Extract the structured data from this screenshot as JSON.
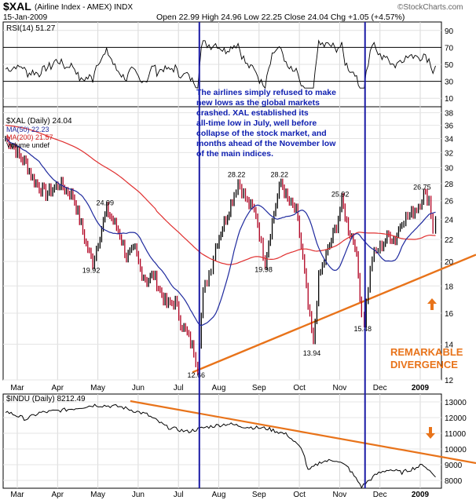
{
  "header": {
    "symbol": "$XAL",
    "name": "(Airline Index - AMEX) INDX",
    "date": "15-Jan-2009",
    "quote": "Open 22.99  High 24.96  Low 22.25  Close 24.04  Chg +1.05 (+4.57%)",
    "watermark": "©StockCharts.com"
  },
  "rsi": {
    "label": "RSI(14) 51.27",
    "ticks": [
      "90",
      "70",
      "50",
      "30",
      "10"
    ]
  },
  "price": {
    "legend": [
      "$XAL (Daily) 24.04",
      "MA(50) 22.23",
      "MA(200) 21.57",
      "Volume undef"
    ],
    "ticks": [
      "38",
      "36",
      "34",
      "32",
      "30",
      "28",
      "26",
      "24",
      "22",
      "20",
      "18",
      "16",
      "14",
      "12"
    ]
  },
  "dates": [
    "Mar",
    "Apr",
    "May",
    "Jun",
    "Jul",
    "Aug",
    "Sep",
    "Oct",
    "Nov",
    "Dec",
    "2009"
  ],
  "annotation": "The airlines simply refused to make new lows as the global markets crashed.  XAL established its all-time low in July, well before collapse of the stock market, and months ahead of the November low of the main indices.",
  "remarkable": [
    "REMARKABLE",
    "DIVERGENCE"
  ],
  "indu": {
    "legend": "$INDU (Daily) 8212.49",
    "ticks": [
      "13000",
      "12000",
      "11000",
      "10000",
      "9000",
      "8000"
    ]
  },
  "colors": {
    "price": "#b00020",
    "ma50": "#1f2a9e",
    "ma200": "#e03030",
    "trend": "#e8731a",
    "vline": "#1a1aa6",
    "annot": "#1020b0"
  },
  "chart_data": {
    "type": "line",
    "x_label_months": [
      "Mar",
      "Apr",
      "May",
      "Jun",
      "Jul",
      "Aug",
      "Sep",
      "Oct",
      "Nov",
      "Dec",
      "2009"
    ],
    "xal_close": [
      [
        "Feb-25",
        34.0
      ],
      [
        "Mar-01",
        32.8
      ],
      [
        "Mar-05",
        31.4
      ],
      [
        "Mar-10",
        30.6
      ],
      [
        "Mar-15",
        28.6
      ],
      [
        "Mar-20",
        27.6
      ],
      [
        "Mar-25",
        26.8
      ],
      [
        "Apr-01",
        27.5
      ],
      [
        "Apr-05",
        28.0
      ],
      [
        "Apr-10",
        27.2
      ],
      [
        "Apr-15",
        26.6
      ],
      [
        "Apr-20",
        24.0
      ],
      [
        "Apr-25",
        21.5
      ],
      [
        "Apr-30",
        19.92
      ],
      [
        "May-05",
        22.5
      ],
      [
        "May-10",
        24.99
      ],
      [
        "May-15",
        23.8
      ],
      [
        "May-20",
        22.5
      ],
      [
        "May-25",
        20.4
      ],
      [
        "Jun-01",
        21.0
      ],
      [
        "Jun-05",
        19.3
      ],
      [
        "Jun-10",
        18.4
      ],
      [
        "Jun-15",
        18.9
      ],
      [
        "Jun-20",
        17.6
      ],
      [
        "Jun-25",
        16.6
      ],
      [
        "Jul-01",
        16.8
      ],
      [
        "Jul-05",
        15.4
      ],
      [
        "Jul-10",
        14.6
      ],
      [
        "Jul-15",
        13.6
      ],
      [
        "Jul-18",
        12.66
      ],
      [
        "Jul-22",
        17.4
      ],
      [
        "Jul-28",
        19.6
      ],
      [
        "Aug-01",
        21.4
      ],
      [
        "Aug-05",
        22.8
      ],
      [
        "Aug-10",
        24.6
      ],
      [
        "Aug-15",
        26.8
      ],
      [
        "Aug-18",
        28.22
      ],
      [
        "Aug-25",
        25.8
      ],
      [
        "Sep-01",
        24.6
      ],
      [
        "Sep-05",
        21.5
      ],
      [
        "Sep-08",
        19.98
      ],
      [
        "Sep-12",
        22.8
      ],
      [
        "Sep-16",
        25.6
      ],
      [
        "Sep-20",
        28.22
      ],
      [
        "Sep-25",
        26.0
      ],
      [
        "Oct-01",
        24.8
      ],
      [
        "Oct-06",
        20.2
      ],
      [
        "Oct-10",
        16.4
      ],
      [
        "Oct-14",
        13.94
      ],
      [
        "Oct-18",
        18.6
      ],
      [
        "Oct-25",
        21.0
      ],
      [
        "Nov-01",
        23.4
      ],
      [
        "Nov-05",
        25.92
      ],
      [
        "Nov-10",
        23.0
      ],
      [
        "Nov-15",
        21.6
      ],
      [
        "Nov-20",
        16.0
      ],
      [
        "Nov-22",
        15.48
      ],
      [
        "Nov-28",
        20.4
      ],
      [
        "Dec-05",
        21.5
      ],
      [
        "Dec-10",
        22.4
      ],
      [
        "Dec-15",
        22.0
      ],
      [
        "Dec-20",
        24.0
      ],
      [
        "Dec-26",
        24.4
      ],
      [
        "Jan-02",
        25.5
      ],
      [
        "Jan-06",
        26.75
      ],
      [
        "Jan-10",
        26.2
      ],
      [
        "Jan-13",
        23.0
      ],
      [
        "Jan-15",
        24.04
      ]
    ],
    "labeled_points": [
      {
        "date": "Apr-30",
        "value": 19.92,
        "label": "19.92"
      },
      {
        "date": "May-10",
        "value": 24.99,
        "label": "24.99"
      },
      {
        "date": "Jul-18",
        "value": 12.66,
        "label": "12.66"
      },
      {
        "date": "Aug-18",
        "value": 28.22,
        "label": "28.22"
      },
      {
        "date": "Sep-08",
        "value": 19.98,
        "label": "19.98"
      },
      {
        "date": "Sep-20",
        "value": 28.22,
        "label": "28.22"
      },
      {
        "date": "Oct-14",
        "value": 13.94,
        "label": "13.94"
      },
      {
        "date": "Nov-05",
        "value": 25.92,
        "label": "25.92"
      },
      {
        "date": "Nov-22",
        "value": 15.48,
        "label": "15.48"
      },
      {
        "date": "Jan-06",
        "value": 26.75,
        "label": "26.75"
      }
    ],
    "xal_ylim": [
      12,
      39
    ],
    "rsi_ylim": [
      0,
      100
    ],
    "indu_ylim": [
      7500,
      13500
    ],
    "indu_close": [
      [
        "Feb-25",
        12400
      ],
      [
        "Mar-10",
        11900
      ],
      [
        "Mar-20",
        12300
      ],
      [
        "Apr-10",
        12500
      ],
      [
        "May-01",
        12800
      ],
      [
        "May-20",
        12700
      ],
      [
        "Jun-10",
        12200
      ],
      [
        "Jun-25",
        11400
      ],
      [
        "Jul-10",
        11100
      ],
      [
        "Jul-25",
        11400
      ],
      [
        "Aug-10",
        11600
      ],
      [
        "Aug-25",
        11400
      ],
      [
        "Sep-10",
        11300
      ],
      [
        "Sep-25",
        10900
      ],
      [
        "Oct-06",
        9900
      ],
      [
        "Oct-10",
        8600
      ],
      [
        "Oct-20",
        9200
      ],
      [
        "Nov-01",
        9300
      ],
      [
        "Nov-10",
        8800
      ],
      [
        "Nov-20",
        7600
      ],
      [
        "Dec-01",
        8400
      ],
      [
        "Dec-10",
        8700
      ],
      [
        "Dec-20",
        8500
      ],
      [
        "Jan-06",
        9000
      ],
      [
        "Jan-15",
        8212.49
      ]
    ]
  }
}
